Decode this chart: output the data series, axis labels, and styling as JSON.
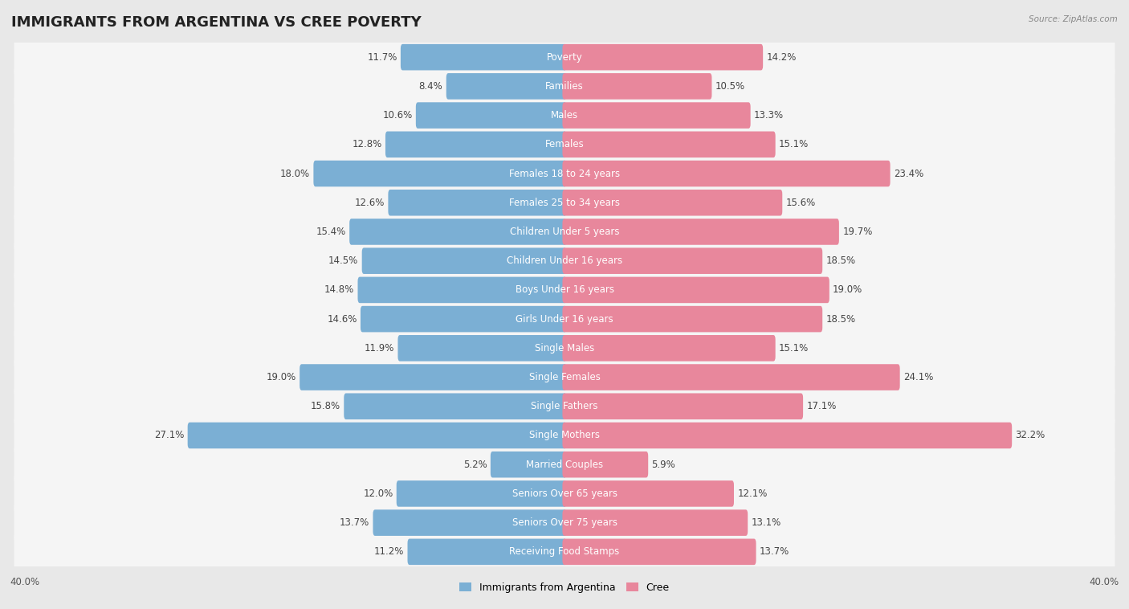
{
  "title": "IMMIGRANTS FROM ARGENTINA VS CREE POVERTY",
  "source": "Source: ZipAtlas.com",
  "categories": [
    "Poverty",
    "Families",
    "Males",
    "Females",
    "Females 18 to 24 years",
    "Females 25 to 34 years",
    "Children Under 5 years",
    "Children Under 16 years",
    "Boys Under 16 years",
    "Girls Under 16 years",
    "Single Males",
    "Single Females",
    "Single Fathers",
    "Single Mothers",
    "Married Couples",
    "Seniors Over 65 years",
    "Seniors Over 75 years",
    "Receiving Food Stamps"
  ],
  "argentina_values": [
    11.7,
    8.4,
    10.6,
    12.8,
    18.0,
    12.6,
    15.4,
    14.5,
    14.8,
    14.6,
    11.9,
    19.0,
    15.8,
    27.1,
    5.2,
    12.0,
    13.7,
    11.2
  ],
  "cree_values": [
    14.2,
    10.5,
    13.3,
    15.1,
    23.4,
    15.6,
    19.7,
    18.5,
    19.0,
    18.5,
    15.1,
    24.1,
    17.1,
    32.2,
    5.9,
    12.1,
    13.1,
    13.7
  ],
  "argentina_color": "#7bafd4",
  "cree_color": "#e8879c",
  "background_color": "#e8e8e8",
  "row_bg_color": "#f5f5f5",
  "axis_limit": 40.0,
  "legend_label_argentina": "Immigrants from Argentina",
  "legend_label_cree": "Cree",
  "title_fontsize": 13,
  "label_fontsize": 8.5,
  "value_fontsize": 8.5,
  "bar_height": 0.6
}
